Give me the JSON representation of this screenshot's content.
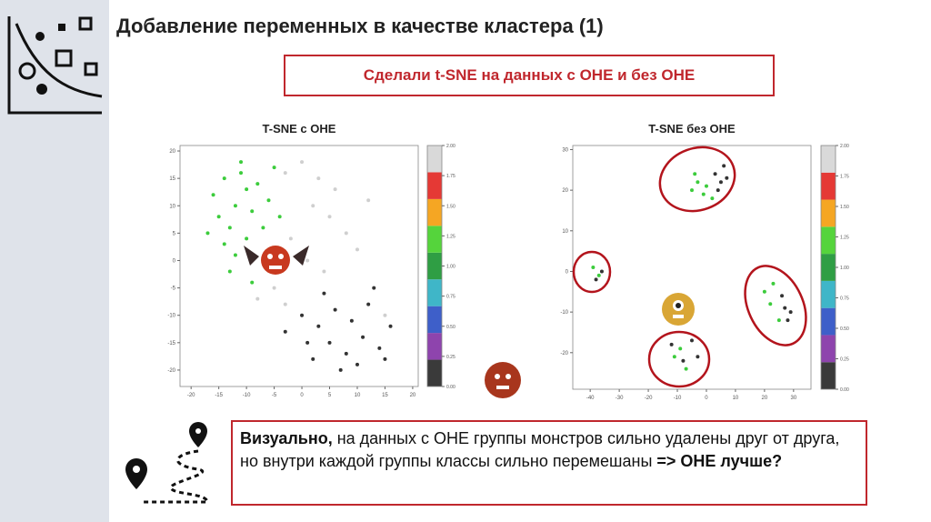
{
  "title": "Добавление переменных в качестве кластера (1)",
  "callout": "Сделали t-SNE на данных с OHE и без OHE",
  "plots": [
    {
      "title": "T-SNE с OHE",
      "xlim": [
        -22,
        21
      ],
      "ylim": [
        -23,
        21
      ],
      "xticks": [
        -20,
        -15,
        -10,
        -5,
        0,
        5,
        10,
        15,
        20
      ],
      "yticks": [
        -20,
        -15,
        -10,
        -5,
        0,
        5,
        10,
        15,
        20
      ],
      "points": [
        [
          -16,
          12
        ],
        [
          -14,
          15
        ],
        [
          -12,
          10
        ],
        [
          -10,
          13
        ],
        [
          -15,
          8
        ],
        [
          -13,
          6
        ],
        [
          -11,
          16
        ],
        [
          -9,
          9
        ],
        [
          -8,
          14
        ],
        [
          -6,
          11
        ],
        [
          -17,
          5
        ],
        [
          -14,
          3
        ],
        [
          -10,
          4
        ],
        [
          -12,
          1
        ],
        [
          -7,
          6
        ],
        [
          -5,
          17
        ],
        [
          -13,
          -2
        ],
        [
          -9,
          -4
        ],
        [
          -4,
          8
        ],
        [
          -11,
          18
        ]
      ],
      "point_classes": [
        1,
        1,
        1,
        1,
        1,
        1,
        1,
        1,
        1,
        1,
        1,
        1,
        1,
        1,
        1,
        1,
        1,
        1,
        1,
        1
      ],
      "points2": [
        [
          -3,
          16
        ],
        [
          0,
          18
        ],
        [
          3,
          15
        ],
        [
          6,
          13
        ],
        [
          2,
          10
        ],
        [
          5,
          8
        ],
        [
          -2,
          4
        ],
        [
          8,
          5
        ],
        [
          10,
          2
        ],
        [
          -5,
          -5
        ],
        [
          -8,
          -7
        ],
        [
          -3,
          -8
        ],
        [
          12,
          11
        ],
        [
          1,
          0
        ],
        [
          4,
          -2
        ],
        [
          15,
          -10
        ],
        [
          0,
          -10
        ],
        [
          3,
          -12
        ],
        [
          6,
          -9
        ],
        [
          9,
          -11
        ],
        [
          12,
          -8
        ],
        [
          5,
          -15
        ],
        [
          8,
          -17
        ],
        [
          11,
          -14
        ],
        [
          14,
          -16
        ],
        [
          2,
          -18
        ],
        [
          7,
          -20
        ],
        [
          10,
          -19
        ],
        [
          -3,
          -13
        ],
        [
          13,
          -5
        ],
        [
          16,
          -12
        ],
        [
          4,
          -6
        ],
        [
          15,
          -18
        ],
        [
          1,
          -15
        ]
      ],
      "point2_classes": [
        2,
        2,
        2,
        2,
        2,
        2,
        2,
        2,
        2,
        2,
        2,
        2,
        2,
        2,
        2,
        2,
        0,
        0,
        0,
        0,
        0,
        0,
        0,
        0,
        0,
        0,
        0,
        0,
        0,
        0,
        0,
        0,
        0,
        0
      ]
    },
    {
      "title": "T-SNE без OHE",
      "xlim": [
        -46,
        36
      ],
      "ylim": [
        -29,
        31
      ],
      "xticks": [
        -40,
        -30,
        -20,
        -10,
        0,
        10,
        20,
        30
      ],
      "yticks": [
        -20,
        -10,
        0,
        10,
        20,
        30
      ],
      "points": [
        [
          -5,
          20
        ],
        [
          -3,
          22
        ],
        [
          -1,
          19
        ],
        [
          -4,
          24
        ],
        [
          0,
          21
        ],
        [
          2,
          18
        ],
        [
          -39,
          1
        ],
        [
          -37,
          -1
        ],
        [
          20,
          -5
        ],
        [
          22,
          -8
        ],
        [
          23,
          -3
        ],
        [
          25,
          -12
        ],
        [
          -9,
          -19
        ],
        [
          -7,
          -24
        ],
        [
          -11,
          -21
        ]
      ],
      "point_classes": [
        1,
        1,
        1,
        1,
        1,
        1,
        1,
        1,
        1,
        1,
        1,
        1,
        1,
        1,
        1
      ],
      "points2": [
        [
          3,
          24
        ],
        [
          5,
          22
        ],
        [
          6,
          26
        ],
        [
          4,
          20
        ],
        [
          7,
          23
        ],
        [
          -36,
          0
        ],
        [
          -38,
          -2
        ],
        [
          27,
          -9
        ],
        [
          28,
          -12
        ],
        [
          26,
          -6
        ],
        [
          29,
          -10
        ],
        [
          -12,
          -18
        ],
        [
          -8,
          -22
        ],
        [
          -5,
          -17
        ],
        [
          -3,
          -21
        ]
      ],
      "point2_classes": [
        0,
        0,
        0,
        0,
        0,
        0,
        0,
        0,
        0,
        0,
        0,
        0,
        0,
        0,
        0
      ]
    }
  ],
  "colorbar": {
    "ticks": [
      {
        "value": 0,
        "label": "0.00"
      },
      {
        "value": 0.25,
        "label": "0.25"
      },
      {
        "value": 0.5,
        "label": "0.50"
      },
      {
        "value": 0.75,
        "label": "0.75"
      },
      {
        "value": 1,
        "label": "1.00"
      },
      {
        "value": 1.25,
        "label": "1.25"
      },
      {
        "value": 1.5,
        "label": "1.50"
      },
      {
        "value": 1.75,
        "label": "1.75"
      },
      {
        "value": 2,
        "label": "2.00"
      }
    ],
    "colors": [
      "#3a3a3a",
      "#8e44ad",
      "#3e5fc9",
      "#3fb6c8",
      "#2f9e44",
      "#55d43c",
      "#f5a623",
      "#e53935",
      "#d9d9d9"
    ],
    "lim": [
      0,
      2
    ]
  },
  "point_colors": [
    "#333333",
    "#3ccc3c",
    "#cfcfcf"
  ],
  "conclusion": {
    "bold": "Визуально,",
    "text": " на данных с OHE группы монстров сильно удалены друг от друга, но внутри каждой группы классы сильно перемешаны ",
    "bold_end": "=> OHE лучше?"
  }
}
